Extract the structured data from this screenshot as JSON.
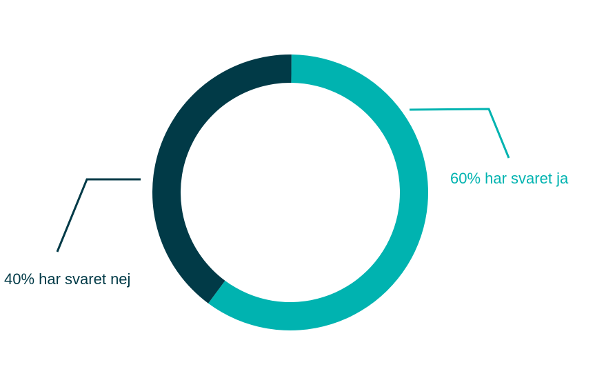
{
  "chart_data": {
    "type": "pie",
    "title": "",
    "slices": [
      {
        "label": "60% har svaret ja",
        "value": 60,
        "color": "#00b3b0"
      },
      {
        "label": "40% har svaret nej",
        "value": 40,
        "color": "#013a47"
      }
    ]
  }
}
